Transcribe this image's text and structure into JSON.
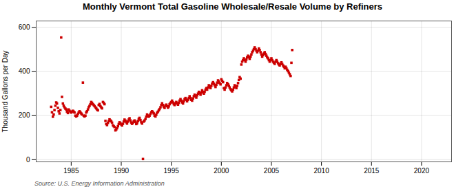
{
  "chart_data": {
    "type": "scatter",
    "title": "Monthly Vermont Total Gasoline Wholesale/Resale Volume by Refiners",
    "ylabel": "Thousand Gallons per Day",
    "annotations": [
      "Source: U.S. Energy Information Administration"
    ],
    "color": "#cc0000",
    "marker": "square",
    "grid": true,
    "xlim": [
      1981.5,
      2023
    ],
    "ylim": [
      -10,
      630
    ],
    "xticks": [
      1985,
      1990,
      1995,
      2000,
      2005,
      2010,
      2015,
      2020
    ],
    "yticks": [
      0,
      200,
      400,
      600
    ],
    "x": [
      1983.0,
      1983.08,
      1983.17,
      1983.25,
      1983.33,
      1983.42,
      1983.5,
      1983.58,
      1983.67,
      1983.75,
      1983.83,
      1983.92,
      1984.0,
      1984.08,
      1984.17,
      1984.25,
      1984.33,
      1984.42,
      1984.5,
      1984.58,
      1984.67,
      1984.75,
      1984.83,
      1984.92,
      1985.0,
      1985.08,
      1985.17,
      1985.25,
      1985.33,
      1985.42,
      1985.5,
      1985.58,
      1985.67,
      1985.75,
      1985.83,
      1985.92,
      1986.0,
      1986.08,
      1986.17,
      1986.25,
      1986.33,
      1986.42,
      1986.5,
      1986.58,
      1986.67,
      1986.75,
      1986.83,
      1986.92,
      1987.0,
      1987.08,
      1987.17,
      1987.25,
      1987.33,
      1987.42,
      1987.5,
      1987.58,
      1987.67,
      1987.75,
      1987.83,
      1987.92,
      1988.0,
      1988.08,
      1988.17,
      1988.25,
      1988.33,
      1988.42,
      1988.5,
      1988.58,
      1988.67,
      1988.75,
      1988.83,
      1988.92,
      1989.0,
      1989.08,
      1989.17,
      1989.25,
      1989.33,
      1989.42,
      1989.5,
      1989.58,
      1989.67,
      1989.75,
      1989.83,
      1989.92,
      1990.0,
      1990.08,
      1990.17,
      1990.25,
      1990.33,
      1990.42,
      1990.5,
      1990.58,
      1990.67,
      1990.75,
      1990.83,
      1990.92,
      1991.0,
      1991.08,
      1991.17,
      1991.25,
      1991.33,
      1991.42,
      1991.5,
      1991.58,
      1991.67,
      1991.75,
      1991.83,
      1991.92,
      1992.0,
      1992.08,
      1992.17,
      1992.25,
      1992.33,
      1992.42,
      1992.5,
      1992.58,
      1992.67,
      1992.75,
      1992.83,
      1992.92,
      1993.0,
      1993.08,
      1993.17,
      1993.25,
      1993.33,
      1993.42,
      1993.5,
      1993.58,
      1993.67,
      1993.75,
      1993.83,
      1993.92,
      1994.0,
      1994.08,
      1994.17,
      1994.25,
      1994.33,
      1994.42,
      1994.5,
      1994.58,
      1994.67,
      1994.75,
      1994.83,
      1994.92,
      1995.0,
      1995.08,
      1995.17,
      1995.25,
      1995.33,
      1995.42,
      1995.5,
      1995.58,
      1995.67,
      1995.75,
      1995.83,
      1995.92,
      1996.0,
      1996.08,
      1996.17,
      1996.25,
      1996.33,
      1996.42,
      1996.5,
      1996.58,
      1996.67,
      1996.75,
      1996.83,
      1996.92,
      1997.0,
      1997.08,
      1997.17,
      1997.25,
      1997.33,
      1997.42,
      1997.5,
      1997.58,
      1997.67,
      1997.75,
      1997.83,
      1997.92,
      1998.0,
      1998.08,
      1998.17,
      1998.25,
      1998.33,
      1998.42,
      1998.5,
      1998.58,
      1998.67,
      1998.75,
      1998.83,
      1998.92,
      1999.0,
      1999.08,
      1999.17,
      1999.25,
      1999.33,
      1999.42,
      1999.5,
      1999.58,
      1999.67,
      1999.75,
      1999.83,
      1999.92,
      2000.0,
      2000.08,
      2000.17,
      2000.25,
      2000.33,
      2000.42,
      2000.5,
      2000.58,
      2000.67,
      2000.75,
      2000.83,
      2000.92,
      2001.0,
      2001.08,
      2001.17,
      2001.25,
      2001.33,
      2001.42,
      2001.5,
      2001.58,
      2001.67,
      2001.75,
      2001.83,
      2001.92,
      2002.0,
      2002.08,
      2002.17,
      2002.25,
      2002.33,
      2002.42,
      2002.5,
      2002.58,
      2002.67,
      2002.75,
      2002.83,
      2002.92,
      2003.0,
      2003.08,
      2003.17,
      2003.25,
      2003.33,
      2003.42,
      2003.5,
      2003.58,
      2003.67,
      2003.75,
      2003.83,
      2003.92,
      2004.0,
      2004.08,
      2004.17,
      2004.25,
      2004.33,
      2004.42,
      2004.5,
      2004.58,
      2004.67,
      2004.75,
      2004.83,
      2004.92,
      2005.0,
      2005.08,
      2005.17,
      2005.25,
      2005.33,
      2005.42,
      2005.5,
      2005.58,
      2005.67,
      2005.75,
      2005.83,
      2005.92,
      2006.0,
      2006.08,
      2006.17,
      2006.25,
      2006.33,
      2006.42,
      2006.5,
      2006.58,
      2006.67,
      2006.75,
      2006.83,
      2006.92,
      2007.0,
      2007.08
    ],
    "values": [
      240,
      215,
      195,
      205,
      225,
      245,
      260,
      255,
      235,
      220,
      210,
      225,
      555,
      285,
      255,
      245,
      238,
      232,
      228,
      218,
      212,
      228,
      222,
      218,
      214,
      218,
      222,
      218,
      214,
      200,
      196,
      200,
      208,
      214,
      220,
      215,
      210,
      205,
      350,
      200,
      196,
      200,
      214,
      220,
      228,
      238,
      244,
      252,
      262,
      258,
      252,
      248,
      243,
      238,
      233,
      228,
      224,
      248,
      253,
      243,
      238,
      233,
      262,
      258,
      252,
      176,
      162,
      157,
      167,
      175,
      183,
      178,
      174,
      168,
      156,
      152,
      148,
      133,
      137,
      143,
      152,
      162,
      170,
      165,
      160,
      155,
      163,
      173,
      182,
      177,
      170,
      164,
      173,
      182,
      188,
      178,
      168,
      163,
      168,
      174,
      178,
      172,
      162,
      165,
      175,
      185,
      190,
      180,
      170,
      164,
      3,
      173,
      178,
      185,
      195,
      205,
      200,
      195,
      200,
      208,
      215,
      220,
      215,
      210,
      200,
      196,
      204,
      213,
      218,
      224,
      230,
      238,
      248,
      256,
      248,
      240,
      235,
      245,
      250,
      243,
      236,
      242,
      252,
      258,
      262,
      268,
      260,
      252,
      248,
      256,
      262,
      255,
      250,
      258,
      268,
      275,
      268,
      260,
      255,
      265,
      275,
      280,
      272,
      265,
      272,
      280,
      288,
      280,
      272,
      268,
      278,
      288,
      295,
      288,
      282,
      292,
      300,
      308,
      302,
      295,
      305,
      315,
      308,
      300,
      308,
      318,
      325,
      318,
      328,
      338,
      332,
      325,
      335,
      345,
      352,
      345,
      338,
      330,
      340,
      350,
      360,
      355,
      348,
      342,
      365,
      358,
      352,
      325,
      318,
      328,
      338,
      348,
      342,
      335,
      328,
      320,
      315,
      310,
      318,
      328,
      338,
      332,
      325,
      335,
      348,
      362,
      375,
      368,
      432,
      445,
      452,
      460,
      452,
      445,
      455,
      465,
      472,
      465,
      458,
      468,
      478,
      488,
      495,
      502,
      510,
      502,
      495,
      488,
      495,
      505,
      498,
      488,
      478,
      468,
      475,
      482,
      488,
      480,
      472,
      465,
      460,
      452,
      445,
      452,
      460,
      452,
      445,
      440,
      435,
      445,
      452,
      445,
      438,
      432,
      428,
      435,
      442,
      435,
      428,
      422,
      415,
      422,
      415,
      408,
      402,
      395,
      388,
      380,
      440,
      498
    ]
  }
}
